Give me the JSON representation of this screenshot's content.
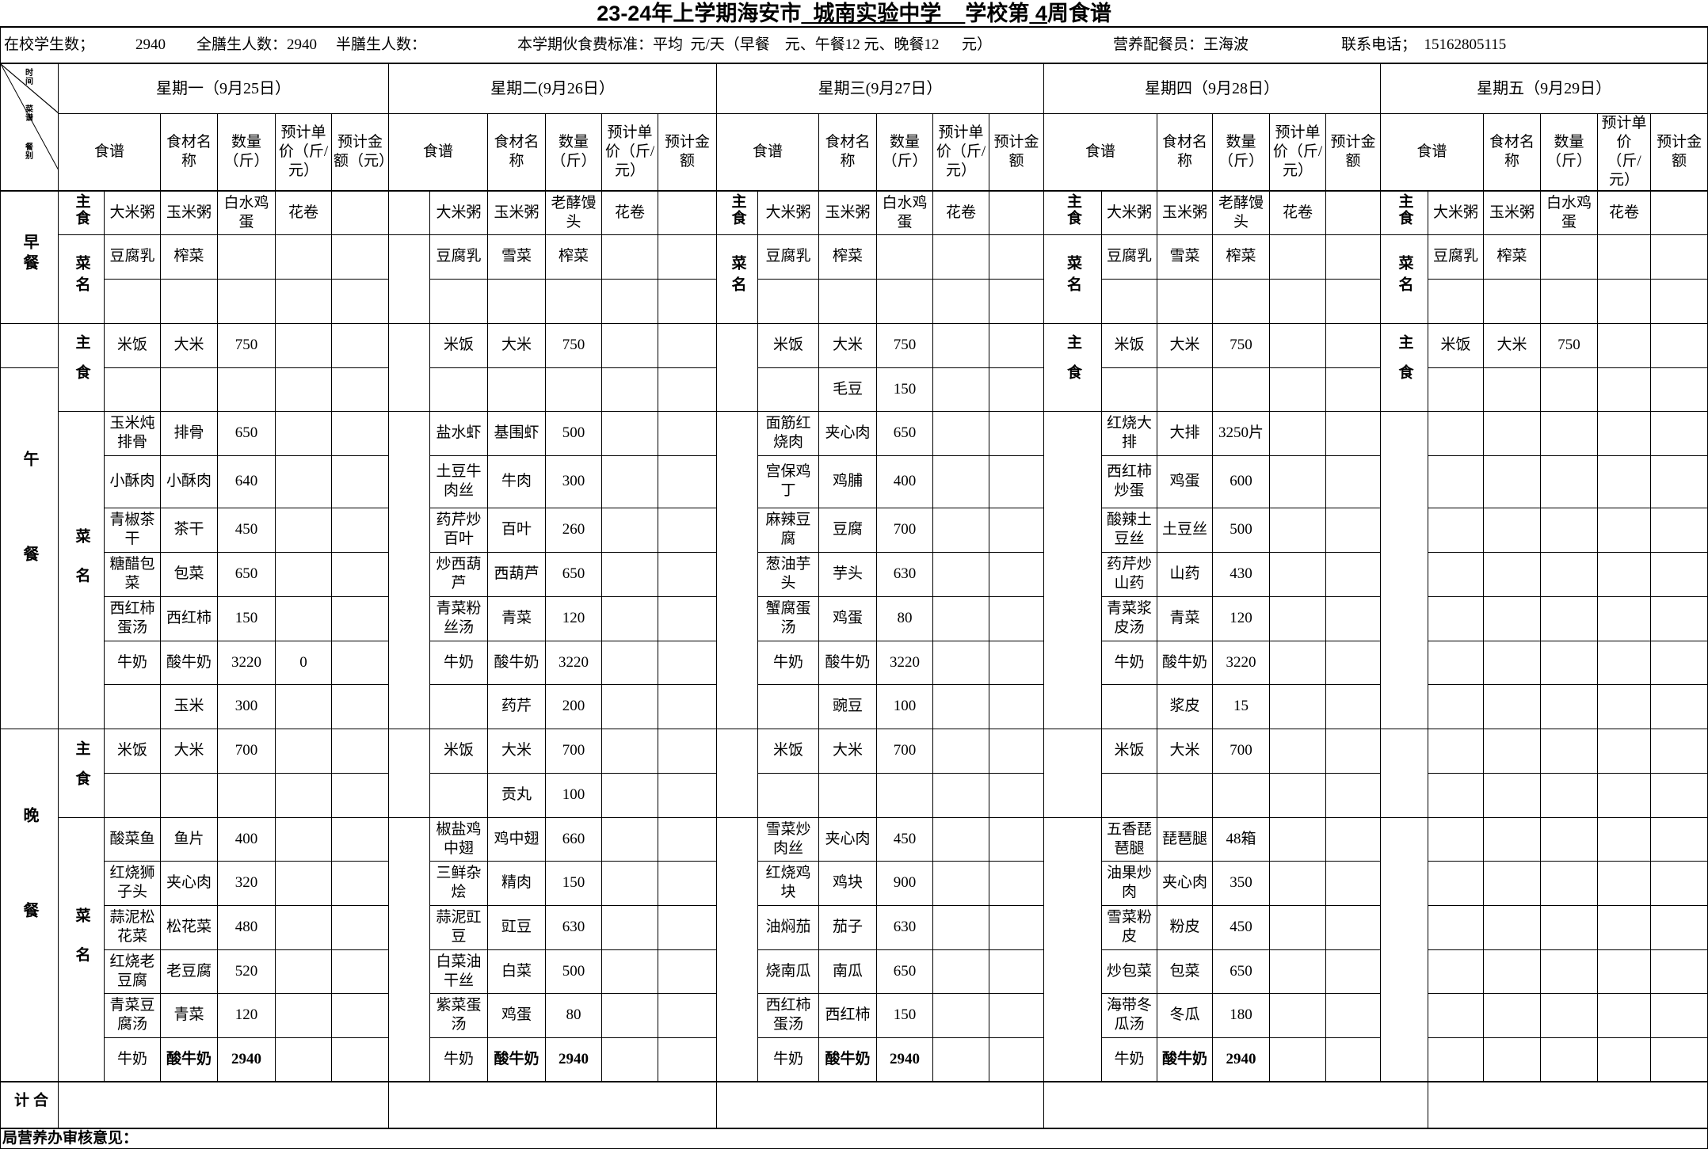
{
  "title": {
    "prefix": "23-24年上学期海安市",
    "school": "  城南实验中学    ",
    "mid": "学校第",
    "week": " 4",
    "suffix": "周食谱"
  },
  "info": {
    "students_label": "在校学生数；",
    "students": "2940",
    "full_board": "全膳生人数：2940",
    "half_board": "半膳生人数：",
    "fee_standard": "本学期伙食费标准：平均  元/天（早餐    元、午餐12 元、晚餐12      元）",
    "dietitian": "营养配餐员：王海波",
    "phone": "联系电话；  15162805115"
  },
  "corner": {
    "time": "时间",
    "menu": "菜谱",
    "meal": "餐别"
  },
  "meals": {
    "breakfast": "早餐",
    "lunch": "午餐",
    "dinner": "晚餐",
    "total": "合计"
  },
  "footer": "局营养办审核意见：",
  "days": [
    {
      "label": "星期一（9月25日）",
      "headers": [
        "食谱",
        "食材名称",
        "数量（斤）",
        "预计单价（斤/元）",
        "预计金额（元）"
      ],
      "categories": {
        "breakfast_staple": "主食",
        "breakfast_dishes": "菜名",
        "lunch_staple": "主食",
        "lunch_dishes": "菜名",
        "dinner_staple": "主食",
        "dinner_dishes": "菜名"
      },
      "breakfast": [
        [
          "大米粥",
          "玉米粥",
          "白水鸡蛋",
          "花卷",
          ""
        ],
        [
          "豆腐乳",
          "榨菜",
          "",
          "",
          ""
        ],
        [
          "",
          "",
          "",
          "",
          ""
        ]
      ],
      "lunch_staple": [
        [
          "米饭",
          "大米",
          "750",
          "",
          ""
        ],
        [
          "",
          "",
          "",
          "",
          ""
        ]
      ],
      "lunch_dishes": [
        [
          "玉米炖排骨",
          "排骨",
          "650",
          "",
          ""
        ],
        [
          "小酥肉",
          "小酥肉",
          "640",
          "",
          ""
        ],
        [
          "青椒茶干",
          "茶干",
          "450",
          "",
          ""
        ],
        [
          "糖醋包菜",
          "包菜",
          "650",
          "",
          ""
        ],
        [
          "西红柿蛋汤",
          "西红柿",
          "150",
          "",
          ""
        ],
        [
          "牛奶",
          "酸牛奶",
          "3220",
          "0",
          ""
        ],
        [
          "",
          "玉米",
          "300",
          "",
          ""
        ]
      ],
      "dinner_staple": [
        [
          "米饭",
          "大米",
          "700",
          "",
          ""
        ],
        [
          "",
          "",
          "",
          "",
          ""
        ]
      ],
      "dinner_dishes": [
        [
          "酸菜鱼",
          "鱼片",
          "400",
          "",
          ""
        ],
        [
          "红烧狮子头",
          "夹心肉",
          "320",
          "",
          ""
        ],
        [
          "蒜泥松花菜",
          "松花菜",
          "480",
          "",
          ""
        ],
        [
          "红烧老豆腐",
          "老豆腐",
          "520",
          "",
          ""
        ],
        [
          "青菜豆腐汤",
          "青菜",
          "120",
          "",
          ""
        ],
        [
          "牛奶",
          "酸牛奶",
          "2940",
          "",
          ""
        ]
      ]
    },
    {
      "label": "星期二(9月26日）",
      "headers": [
        "食谱",
        "食材名称",
        "数量（斤）",
        "预计单价（斤/元）",
        "预计金额"
      ],
      "categories": {
        "breakfast_staple": "",
        "breakfast_dishes": "",
        "lunch_staple": "",
        "lunch_dishes": "",
        "dinner_staple": "",
        "dinner_dishes": ""
      },
      "breakfast": [
        [
          "大米粥",
          "玉米粥",
          "老酵馒头",
          "花卷",
          ""
        ],
        [
          "豆腐乳",
          "雪菜",
          "榨菜",
          "",
          ""
        ],
        [
          "",
          "",
          "",
          "",
          ""
        ]
      ],
      "lunch_staple": [
        [
          "米饭",
          "大米",
          "750",
          "",
          ""
        ],
        [
          "",
          "",
          "",
          "",
          ""
        ]
      ],
      "lunch_dishes": [
        [
          "盐水虾",
          "基围虾",
          "500",
          "",
          ""
        ],
        [
          "土豆牛肉丝",
          "牛肉",
          "300",
          "",
          ""
        ],
        [
          "药芹炒百叶",
          "百叶",
          "260",
          "",
          ""
        ],
        [
          "炒西葫芦",
          "西葫芦",
          "650",
          "",
          ""
        ],
        [
          "青菜粉丝汤",
          "青菜",
          "120",
          "",
          ""
        ],
        [
          "牛奶",
          "酸牛奶",
          "3220",
          "",
          ""
        ],
        [
          "",
          "药芹",
          "200",
          "",
          ""
        ]
      ],
      "dinner_staple": [
        [
          "米饭",
          "大米",
          "700",
          "",
          ""
        ],
        [
          "",
          "贡丸",
          "100",
          "",
          ""
        ]
      ],
      "dinner_dishes": [
        [
          "椒盐鸡中翅",
          "鸡中翅",
          "660",
          "",
          ""
        ],
        [
          "三鲜杂烩",
          "精肉",
          "150",
          "",
          ""
        ],
        [
          "蒜泥豇豆",
          "豇豆",
          "630",
          "",
          ""
        ],
        [
          "白菜油干丝",
          "白菜",
          "500",
          "",
          ""
        ],
        [
          "紫菜蛋汤",
          "鸡蛋",
          "80",
          "",
          ""
        ],
        [
          "牛奶",
          "酸牛奶",
          "2940",
          "",
          ""
        ]
      ]
    },
    {
      "label": "星期三(9月27日）",
      "headers": [
        "食谱",
        "食材名称",
        "数量（斤）",
        "预计单价（斤/元）",
        "预计金额"
      ],
      "categories": {
        "breakfast_staple": "主食",
        "breakfast_dishes": "菜名",
        "lunch_staple": "",
        "lunch_dishes": "",
        "dinner_staple": "",
        "dinner_dishes": ""
      },
      "breakfast": [
        [
          "大米粥",
          "玉米粥",
          "白水鸡蛋",
          "花卷",
          ""
        ],
        [
          "豆腐乳",
          "榨菜",
          "",
          "",
          ""
        ],
        [
          "",
          "",
          "",
          "",
          ""
        ]
      ],
      "lunch_staple": [
        [
          "米饭",
          "大米",
          "750",
          "",
          ""
        ],
        [
          "",
          "毛豆",
          "150",
          "",
          ""
        ]
      ],
      "lunch_dishes": [
        [
          "面筋红烧肉",
          "夹心肉",
          "650",
          "",
          ""
        ],
        [
          "宫保鸡丁",
          "鸡脯",
          "400",
          "",
          ""
        ],
        [
          "麻辣豆腐",
          "豆腐",
          "700",
          "",
          ""
        ],
        [
          "葱油芋头",
          "芋头",
          "630",
          "",
          ""
        ],
        [
          "蟹腐蛋汤",
          "鸡蛋",
          "80",
          "",
          ""
        ],
        [
          "牛奶",
          "酸牛奶",
          "3220",
          "",
          ""
        ],
        [
          "",
          "豌豆",
          "100",
          "",
          ""
        ]
      ],
      "dinner_staple": [
        [
          "米饭",
          "大米",
          "700",
          "",
          ""
        ],
        [
          "",
          "",
          "",
          "",
          ""
        ]
      ],
      "dinner_dishes": [
        [
          "雪菜炒肉丝",
          "夹心肉",
          "450",
          "",
          ""
        ],
        [
          "红烧鸡块",
          "鸡块",
          "900",
          "",
          ""
        ],
        [
          "油焖茄",
          "茄子",
          "630",
          "",
          ""
        ],
        [
          "烧南瓜",
          "南瓜",
          "650",
          "",
          ""
        ],
        [
          "西红柿蛋汤",
          "西红柿",
          "150",
          "",
          ""
        ],
        [
          "牛奶",
          "酸牛奶",
          "2940",
          "",
          ""
        ]
      ]
    },
    {
      "label": "星期四（9月28日）",
      "headers": [
        "食谱",
        "食材名称",
        "数量（斤）",
        "预计单价（斤/元）",
        "预计金额"
      ],
      "categories": {
        "breakfast_staple": "主食",
        "breakfast_dishes": "菜名",
        "lunch_staple": "主食",
        "lunch_dishes": "",
        "dinner_staple": "",
        "dinner_dishes": ""
      },
      "breakfast": [
        [
          "大米粥",
          "玉米粥",
          "老酵馒头",
          "花卷",
          ""
        ],
        [
          "豆腐乳",
          "雪菜",
          "榨菜",
          "",
          ""
        ],
        [
          "",
          "",
          "",
          "",
          ""
        ]
      ],
      "lunch_staple": [
        [
          "米饭",
          "大米",
          "750",
          "",
          ""
        ],
        [
          "",
          "",
          "",
          "",
          ""
        ]
      ],
      "lunch_dishes": [
        [
          "红烧大排",
          "大排",
          "3250片",
          "",
          ""
        ],
        [
          "西红柿炒蛋",
          "鸡蛋",
          "600",
          "",
          ""
        ],
        [
          "酸辣土豆丝",
          "土豆丝",
          "500",
          "",
          ""
        ],
        [
          "药芹炒山药",
          "山药",
          "430",
          "",
          ""
        ],
        [
          "青菜浆皮汤",
          "青菜",
          "120",
          "",
          ""
        ],
        [
          "牛奶",
          "酸牛奶",
          "3220",
          "",
          ""
        ],
        [
          "",
          "浆皮",
          "15",
          "",
          ""
        ]
      ],
      "dinner_staple": [
        [
          "米饭",
          "大米",
          "700",
          "",
          ""
        ],
        [
          "",
          "",
          "",
          "",
          ""
        ]
      ],
      "dinner_dishes": [
        [
          "五香琵琶腿",
          "琵琶腿",
          "48箱",
          "",
          ""
        ],
        [
          "油果炒肉",
          "夹心肉",
          "350",
          "",
          ""
        ],
        [
          "雪菜粉皮",
          "粉皮",
          "450",
          "",
          ""
        ],
        [
          "炒包菜",
          "包菜",
          "650",
          "",
          ""
        ],
        [
          "海带冬瓜汤",
          "冬瓜",
          "180",
          "",
          ""
        ],
        [
          "牛奶",
          "酸牛奶",
          "2940",
          "",
          ""
        ]
      ]
    },
    {
      "label": "星期五（9月29日）",
      "headers": [
        "食谱",
        "食材名称",
        "数量（斤）",
        "预计单价（斤/元）",
        "预计金额"
      ],
      "categories": {
        "breakfast_staple": "主食",
        "breakfast_dishes": "菜名",
        "lunch_staple": "主食",
        "lunch_dishes": "",
        "dinner_staple": "",
        "dinner_dishes": ""
      },
      "breakfast": [
        [
          "大米粥",
          "玉米粥",
          "白水鸡蛋",
          "花卷",
          ""
        ],
        [
          "豆腐乳",
          "榨菜",
          "",
          "",
          ""
        ],
        [
          "",
          "",
          "",
          "",
          ""
        ]
      ],
      "lunch_staple": [
        [
          "米饭",
          "大米",
          "750",
          "",
          ""
        ],
        [
          "",
          "",
          "",
          "",
          ""
        ]
      ],
      "lunch_dishes": [
        [
          "",
          "",
          "",
          "",
          ""
        ],
        [
          "",
          "",
          "",
          "",
          ""
        ],
        [
          "",
          "",
          "",
          "",
          ""
        ],
        [
          "",
          "",
          "",
          "",
          ""
        ],
        [
          "",
          "",
          "",
          "",
          ""
        ],
        [
          "",
          "",
          "",
          "",
          ""
        ],
        [
          "",
          "",
          "",
          "",
          ""
        ]
      ],
      "dinner_staple": [
        [
          "",
          "",
          "",
          "",
          ""
        ],
        [
          "",
          "",
          "",
          "",
          ""
        ]
      ],
      "dinner_dishes": [
        [
          "",
          "",
          "",
          "",
          ""
        ],
        [
          "",
          "",
          "",
          "",
          ""
        ],
        [
          "",
          "",
          "",
          "",
          ""
        ],
        [
          "",
          "",
          "",
          "",
          ""
        ],
        [
          "",
          "",
          "",
          "",
          ""
        ],
        [
          "",
          "",
          "",
          "",
          ""
        ]
      ]
    }
  ]
}
